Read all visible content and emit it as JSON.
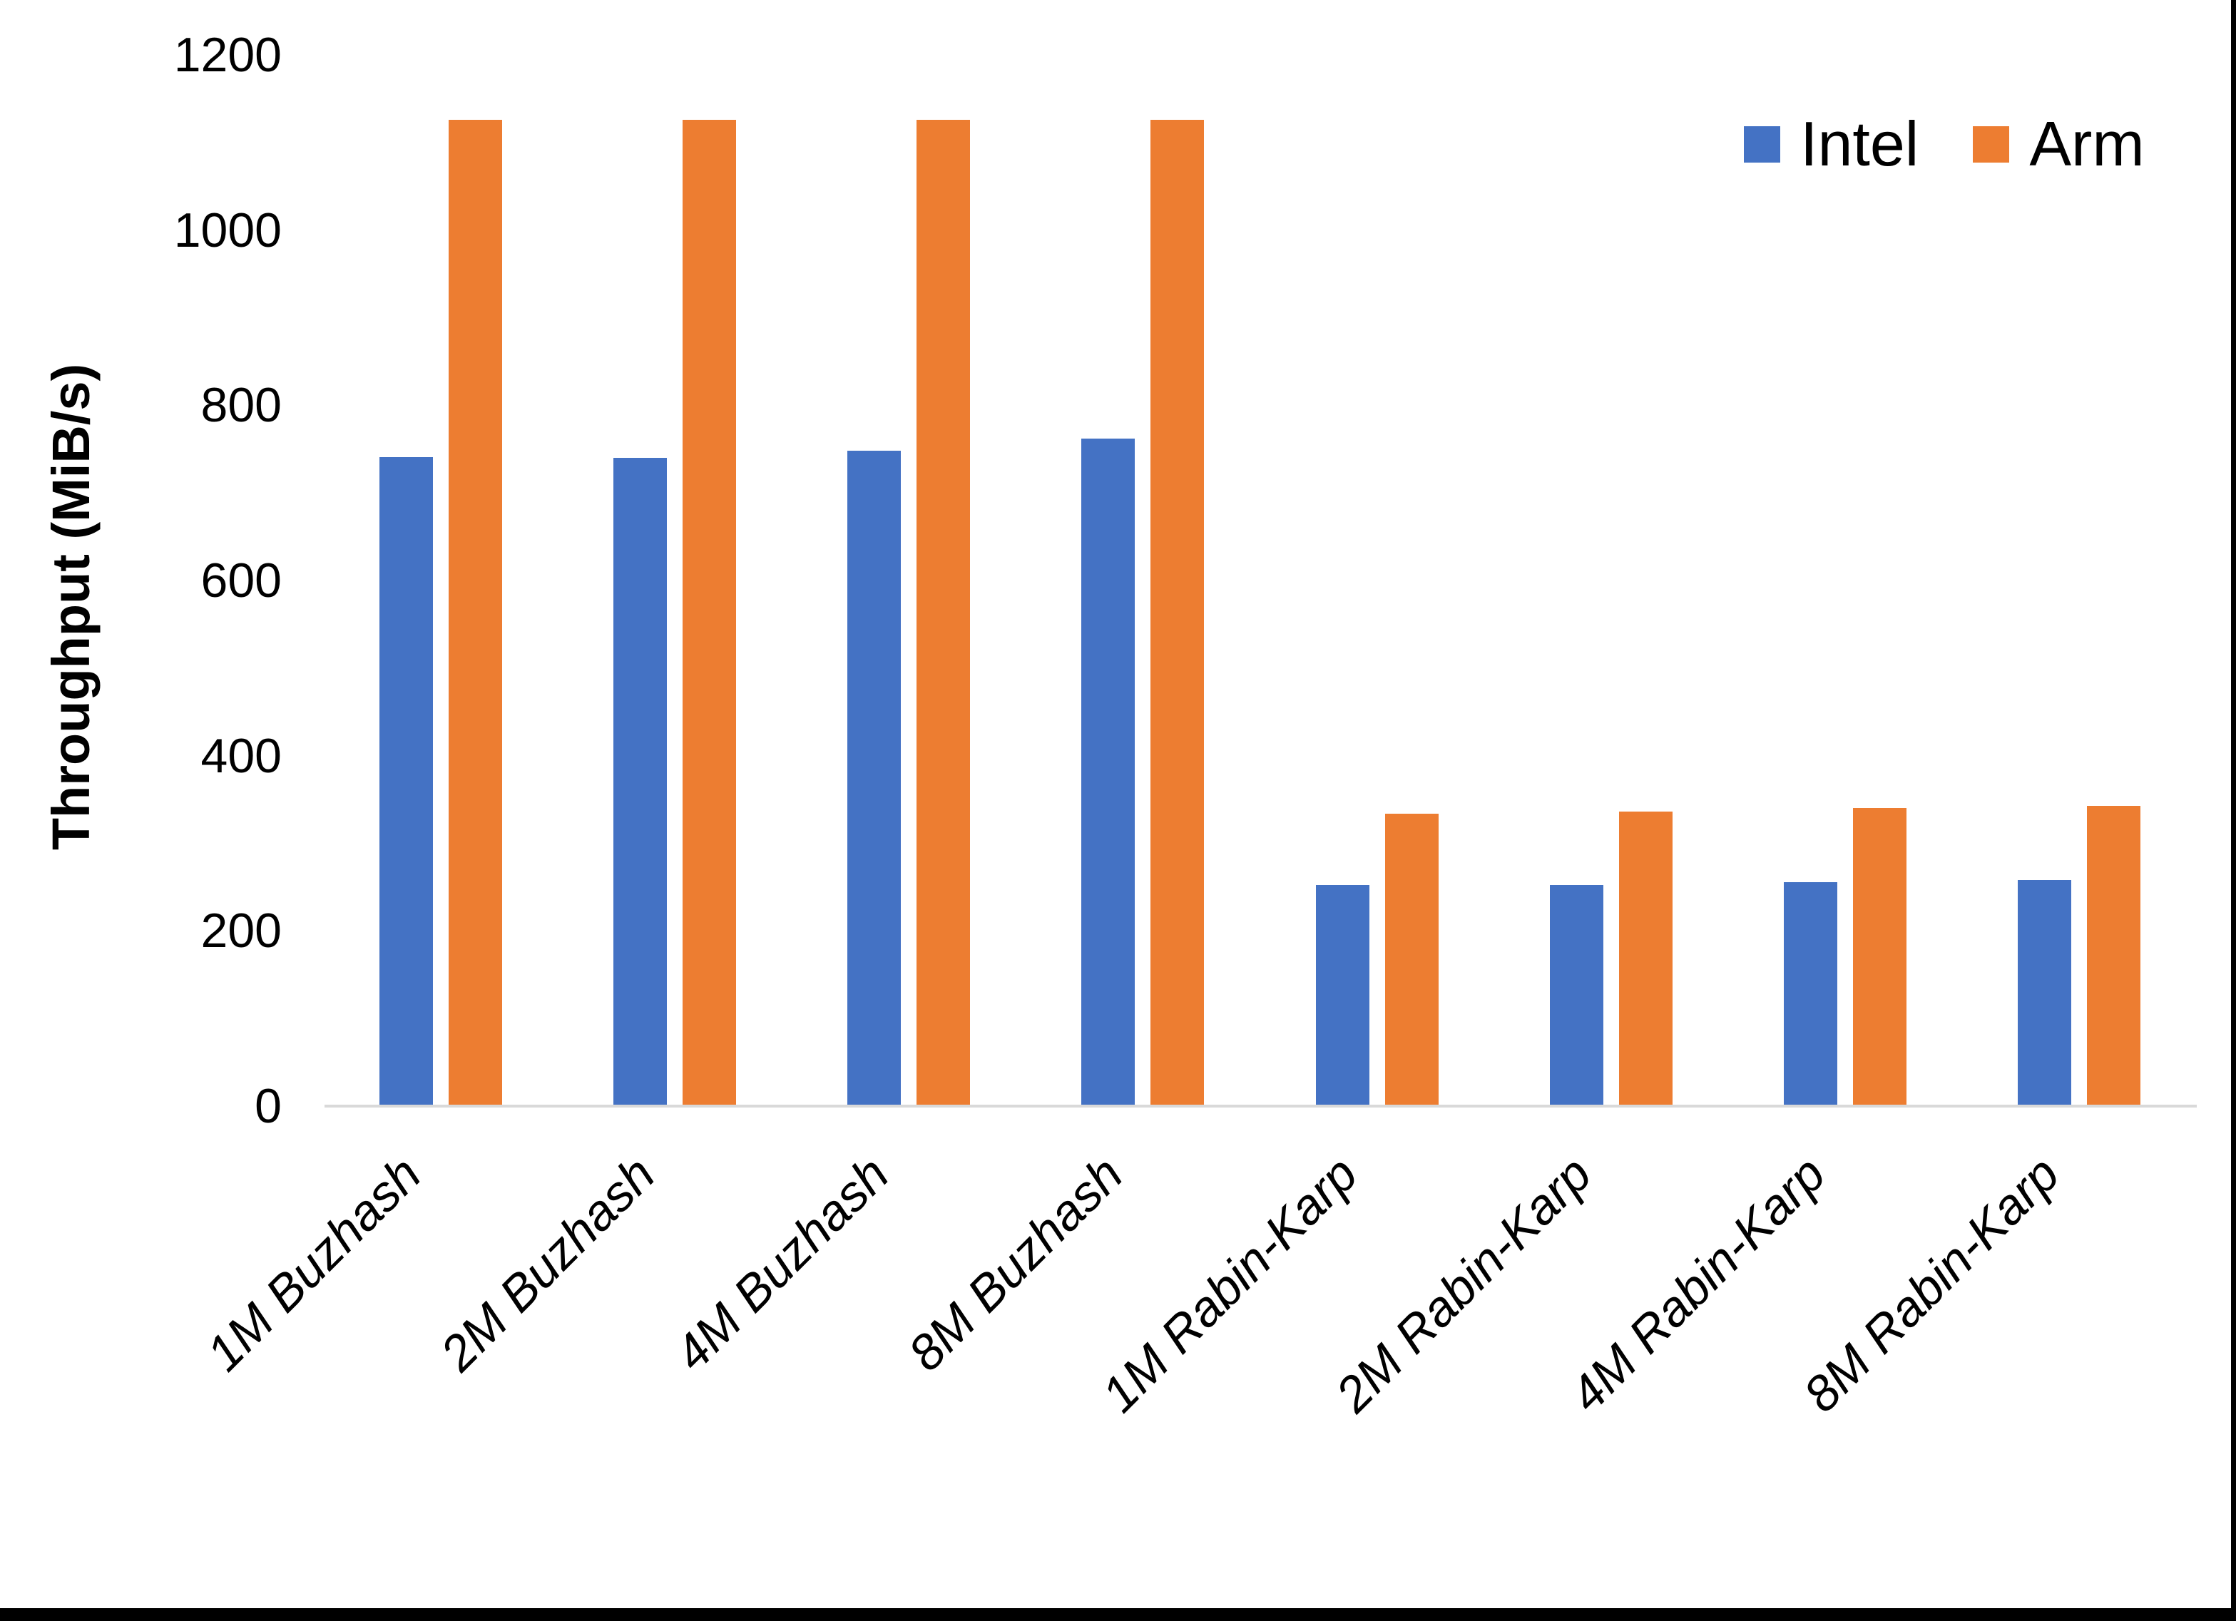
{
  "chart_data": {
    "type": "bar",
    "title": "",
    "xlabel": "",
    "ylabel": "Throughput (MiB/s)",
    "ylim": [
      0,
      1200
    ],
    "yticks": [
      0,
      200,
      400,
      600,
      800,
      1000,
      1200
    ],
    "grid": false,
    "legend_position": "top-right",
    "categories": [
      "1M Buzhash",
      "2M Buzhash",
      "4M Buzhash",
      "8M Buzhash",
      "1M Rabin-Karp",
      "2M Rabin-Karp",
      "4M Rabin-Karp",
      "8M Rabin-Karp"
    ],
    "series": [
      {
        "name": "Intel",
        "color": "#4472C4",
        "values": [
          741,
          740,
          748,
          762,
          252,
          252,
          256,
          258
        ]
      },
      {
        "name": "Arm",
        "color": "#ED7D31",
        "values": [
          1126,
          1126,
          1126,
          1126,
          334,
          336,
          340,
          343
        ]
      }
    ]
  },
  "colors": {
    "background": "#FFFFFF",
    "axis_line": "#D9D9D9",
    "text": "#000000",
    "screenshot_edge": "#000000"
  }
}
